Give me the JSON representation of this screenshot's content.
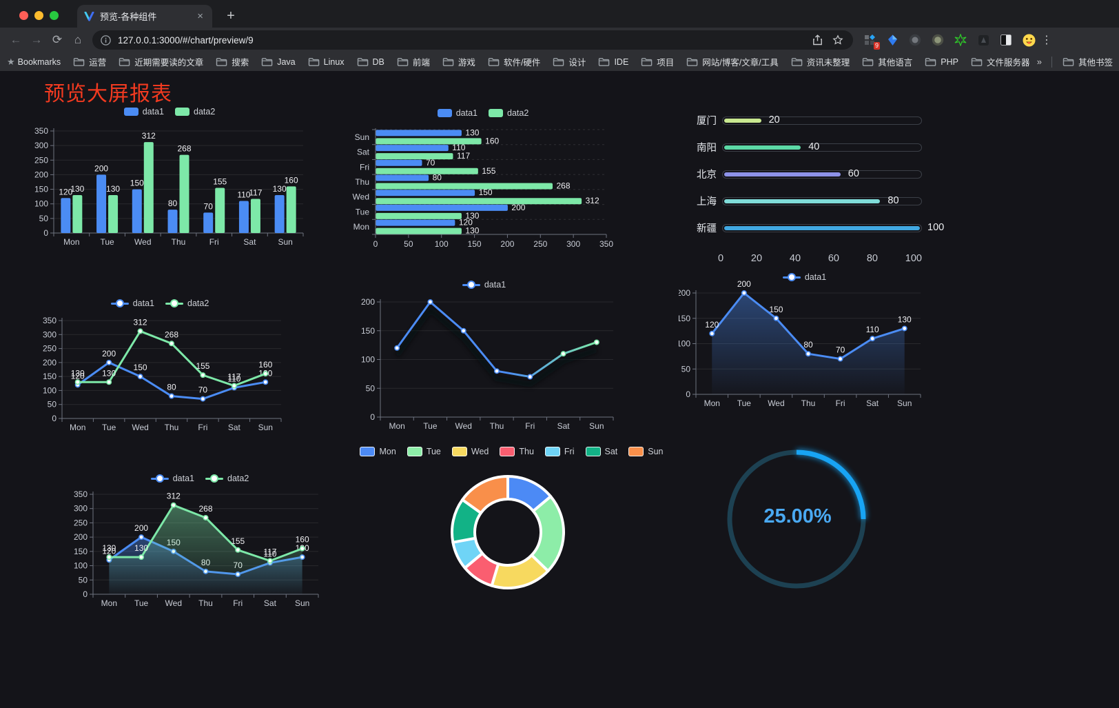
{
  "browser": {
    "traffic_lights": [
      "#ff5f57",
      "#febc2e",
      "#28c840"
    ],
    "tab_title": "预览-各种组件",
    "icons": {
      "back": "←",
      "forward": "→",
      "reload": "⟳",
      "home": "⌂",
      "close_tab": "×",
      "new_tab": "+",
      "menu": "⋮",
      "overflow": "»"
    },
    "url": "127.0.0.1:3000/#/chart/preview/9",
    "bookmarks_root_label": "Bookmarks",
    "bookmarks": [
      "运营",
      "近期需要读的文章",
      "搜索",
      "Java",
      "Linux",
      "DB",
      "前端",
      "游戏",
      "软件/硬件",
      "设计",
      "IDE",
      "项目",
      "网站/博客/文章/工具",
      "资讯未整理",
      "其他语言",
      "PHP",
      "文件服务器"
    ],
    "other_bookmarks": "其他书签",
    "extension_badge": "9"
  },
  "page": {
    "title": "预览大屏报表",
    "title_color": "#f23a20"
  },
  "palette": {
    "blue": "#4b8cf4",
    "green": "#7de8a8",
    "bg": "#141419"
  },
  "chart_data": [
    {
      "id": "bar-vertical",
      "type": "bar",
      "categories": [
        "Mon",
        "Tue",
        "Wed",
        "Thu",
        "Fri",
        "Sat",
        "Sun"
      ],
      "series": [
        {
          "name": "data1",
          "color": "#4b8cf4",
          "values": [
            120,
            200,
            150,
            80,
            70,
            110,
            130
          ]
        },
        {
          "name": "data2",
          "color": "#7de8a8",
          "values": [
            130,
            130,
            312,
            268,
            155,
            117,
            160
          ]
        }
      ],
      "ylim": [
        0,
        350
      ],
      "ystep": 50,
      "legend": "rect",
      "show_labels": true
    },
    {
      "id": "bar-horizontal",
      "type": "hbar",
      "categories": [
        "Mon",
        "Tue",
        "Wed",
        "Thu",
        "Fri",
        "Sat",
        "Sun"
      ],
      "series": [
        {
          "name": "data1",
          "color": "#4b8cf4",
          "values": [
            120,
            200,
            150,
            80,
            70,
            110,
            130
          ]
        },
        {
          "name": "data2",
          "color": "#7de8a8",
          "values": [
            130,
            130,
            312,
            268,
            155,
            117,
            160
          ]
        }
      ],
      "xlim": [
        0,
        350
      ],
      "xstep": 50,
      "legend": "rect",
      "show_labels": true
    },
    {
      "id": "progress-bars",
      "type": "progress",
      "max": 100,
      "axis_ticks": [
        0,
        20,
        40,
        60,
        80,
        100
      ],
      "items": [
        {
          "label": "厦门",
          "value": 20,
          "color": "#c9e890"
        },
        {
          "label": "南阳",
          "value": 40,
          "color": "#5cd9a6"
        },
        {
          "label": "北京",
          "value": 60,
          "color": "#8d92e8"
        },
        {
          "label": "上海",
          "value": 80,
          "color": "#80dcd9"
        },
        {
          "label": "新疆",
          "value": 100,
          "color": "#41a8e1"
        }
      ]
    },
    {
      "id": "line-two-series",
      "type": "line",
      "categories": [
        "Mon",
        "Tue",
        "Wed",
        "Thu",
        "Fri",
        "Sat",
        "Sun"
      ],
      "series": [
        {
          "name": "data1",
          "color": "#4b8cf4",
          "values": [
            120,
            200,
            150,
            80,
            70,
            110,
            130
          ]
        },
        {
          "name": "data2",
          "color": "#7de8a8",
          "values": [
            130,
            130,
            312,
            268,
            155,
            117,
            160
          ]
        }
      ],
      "ylim": [
        0,
        350
      ],
      "ystep": 50,
      "legend": "line",
      "show_labels": true
    },
    {
      "id": "line-gradient",
      "type": "line",
      "categories": [
        "Mon",
        "Tue",
        "Wed",
        "Thu",
        "Fri",
        "Sat",
        "Sun"
      ],
      "series": [
        {
          "name": "data1",
          "color": "#4b8cf4",
          "color2": "#7de8a8",
          "shadow": true,
          "values": [
            120,
            200,
            150,
            80,
            70,
            110,
            130
          ]
        }
      ],
      "ylim": [
        0,
        200
      ],
      "ystep": 50,
      "legend": "line",
      "show_labels": false
    },
    {
      "id": "area-single",
      "type": "line",
      "categories": [
        "Mon",
        "Tue",
        "Wed",
        "Thu",
        "Fri",
        "Sat",
        "Sun"
      ],
      "series": [
        {
          "name": "data1",
          "color": "#4b8cf4",
          "area": true,
          "values": [
            120,
            200,
            150,
            80,
            70,
            110,
            130
          ]
        }
      ],
      "ylim": [
        0,
        200
      ],
      "ystep": 50,
      "legend": "line",
      "show_labels": true
    },
    {
      "id": "area-two-series",
      "type": "line",
      "categories": [
        "Mon",
        "Tue",
        "Wed",
        "Thu",
        "Fri",
        "Sat",
        "Sun"
      ],
      "series": [
        {
          "name": "data1",
          "color": "#4b8cf4",
          "area": true,
          "values": [
            120,
            200,
            150,
            80,
            70,
            110,
            130
          ]
        },
        {
          "name": "data2",
          "color": "#7de8a8",
          "area": true,
          "values": [
            130,
            130,
            312,
            268,
            155,
            117,
            160
          ]
        }
      ],
      "ylim": [
        0,
        350
      ],
      "ystep": 50,
      "legend": "line",
      "show_labels": true
    },
    {
      "id": "donut",
      "type": "donut",
      "legend": "rect-bordered",
      "items": [
        {
          "name": "Mon",
          "value": 120,
          "color": "#4c8af5"
        },
        {
          "name": "Tue",
          "value": 200,
          "color": "#8deda8"
        },
        {
          "name": "Wed",
          "value": 150,
          "color": "#f7d95f"
        },
        {
          "name": "Thu",
          "value": 80,
          "color": "#fa5e70"
        },
        {
          "name": "Fri",
          "value": 70,
          "color": "#6fd4f6"
        },
        {
          "name": "Sat",
          "value": 110,
          "color": "#12b286"
        },
        {
          "name": "Sun",
          "value": 130,
          "color": "#f98f4a"
        }
      ]
    },
    {
      "id": "gauge",
      "type": "gauge",
      "value": 25,
      "label": "25.00%",
      "track_color": "#1d4152",
      "arc_color": "#18a4f4",
      "text_color": "#4aa9f2"
    }
  ]
}
